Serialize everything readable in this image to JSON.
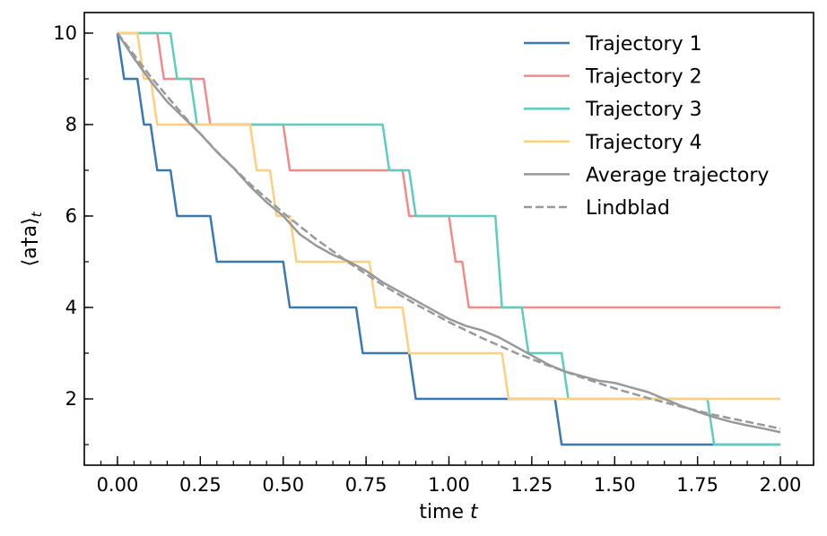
{
  "chart_data": {
    "type": "line",
    "title": "",
    "xlabel": "time",
    "xlabel_var": "t",
    "ylabel": "⟨a†a⟩",
    "ylabel_sub": "t",
    "xlim": [
      -0.1,
      2.1
    ],
    "ylim": [
      0.55,
      10.45
    ],
    "xticks": [
      0.0,
      0.25,
      0.5,
      0.75,
      1.0,
      1.25,
      1.5,
      1.75,
      2.0
    ],
    "xtick_labels": [
      "0.00",
      "0.25",
      "0.50",
      "0.75",
      "1.00",
      "1.25",
      "1.50",
      "1.75",
      "2.00"
    ],
    "yticks": [
      2,
      4,
      6,
      8,
      10
    ],
    "ytick_labels": [
      "2",
      "4",
      "6",
      "8",
      "10"
    ],
    "xminor_step": 0.05,
    "yminor_step": 1,
    "grid": false,
    "legend_position": "top-right",
    "series": [
      {
        "name": "Trajectory 1",
        "color": "#3a78b0",
        "style": "step",
        "x": [
          0.0,
          0.02,
          0.06,
          0.08,
          0.1,
          0.12,
          0.16,
          0.18,
          0.28,
          0.3,
          0.5,
          0.52,
          0.72,
          0.74,
          0.88,
          0.9,
          1.32,
          1.34,
          2.0
        ],
        "y": [
          10,
          9,
          9,
          8,
          8,
          7,
          7,
          6,
          6,
          5,
          5,
          4,
          4,
          3,
          3,
          2,
          2,
          1,
          1
        ]
      },
      {
        "name": "Trajectory 2",
        "color": "#f28b88",
        "style": "step",
        "x": [
          0.0,
          0.12,
          0.14,
          0.26,
          0.28,
          0.5,
          0.52,
          0.86,
          0.88,
          1.0,
          1.02,
          1.04,
          1.06,
          2.0
        ],
        "y": [
          10,
          10,
          9,
          9,
          8,
          8,
          7,
          7,
          6,
          6,
          5,
          5,
          4,
          4
        ]
      },
      {
        "name": "Trajectory 3",
        "color": "#5ccdbf",
        "style": "step",
        "x": [
          0.0,
          0.16,
          0.18,
          0.22,
          0.24,
          0.8,
          0.82,
          0.88,
          0.9,
          1.14,
          1.16,
          1.22,
          1.24,
          1.34,
          1.36,
          1.78,
          1.8,
          2.0
        ],
        "y": [
          10,
          10,
          9,
          9,
          8,
          8,
          7,
          7,
          6,
          6,
          4,
          4,
          3,
          3,
          2,
          2,
          1,
          1
        ]
      },
      {
        "name": "Trajectory 4",
        "color": "#fcd07f",
        "style": "step",
        "x": [
          0.0,
          0.06,
          0.08,
          0.1,
          0.12,
          0.4,
          0.42,
          0.46,
          0.48,
          0.52,
          0.54,
          0.76,
          0.78,
          0.86,
          0.88,
          1.16,
          1.18,
          2.0
        ],
        "y": [
          10,
          10,
          9,
          9,
          8,
          8,
          7,
          7,
          6,
          6,
          5,
          5,
          4,
          4,
          3,
          3,
          2,
          2
        ]
      },
      {
        "name": "Average trajectory",
        "color": "#999999",
        "style": "solid",
        "x": [
          0.0,
          0.05,
          0.1,
          0.15,
          0.2,
          0.25,
          0.3,
          0.35,
          0.4,
          0.45,
          0.5,
          0.55,
          0.6,
          0.65,
          0.7,
          0.75,
          0.8,
          0.85,
          0.9,
          0.95,
          1.0,
          1.05,
          1.1,
          1.15,
          1.2,
          1.25,
          1.3,
          1.35,
          1.4,
          1.45,
          1.5,
          1.55,
          1.6,
          1.65,
          1.7,
          1.75,
          1.8,
          1.85,
          1.9,
          1.95,
          2.0
        ],
        "y": [
          10.0,
          9.45,
          8.95,
          8.5,
          8.15,
          7.8,
          7.4,
          7.05,
          6.65,
          6.3,
          6.0,
          5.6,
          5.35,
          5.15,
          5.0,
          4.8,
          4.55,
          4.35,
          4.15,
          3.95,
          3.75,
          3.6,
          3.5,
          3.35,
          3.15,
          2.95,
          2.75,
          2.6,
          2.5,
          2.4,
          2.35,
          2.25,
          2.15,
          2.0,
          1.85,
          1.72,
          1.6,
          1.5,
          1.42,
          1.35,
          1.27
        ]
      },
      {
        "name": "Lindblad",
        "color": "#999999",
        "style": "dashed",
        "x": [
          0.0,
          0.1,
          0.2,
          0.3,
          0.4,
          0.5,
          0.6,
          0.7,
          0.8,
          0.9,
          1.0,
          1.1,
          1.2,
          1.3,
          1.4,
          1.5,
          1.6,
          1.7,
          1.8,
          1.9,
          2.0
        ],
        "y": [
          10.0,
          9.05,
          8.19,
          7.41,
          6.7,
          6.07,
          5.49,
          4.97,
          4.49,
          4.07,
          3.68,
          3.33,
          3.01,
          2.73,
          2.47,
          2.23,
          2.02,
          1.83,
          1.65,
          1.5,
          1.35
        ]
      }
    ]
  }
}
